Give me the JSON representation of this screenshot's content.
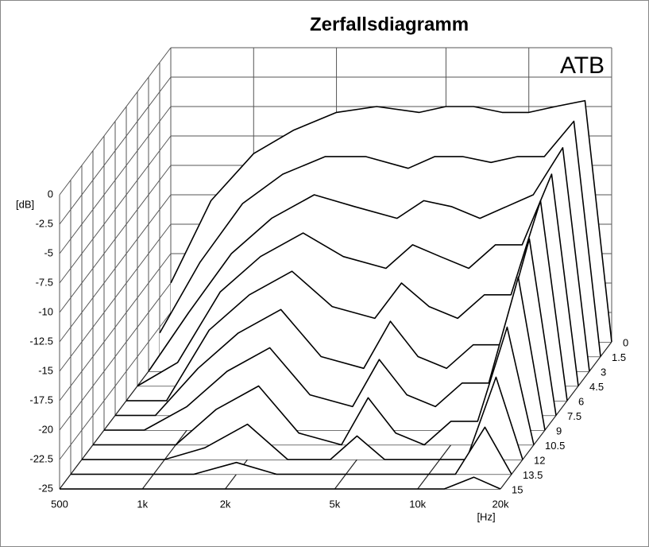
{
  "chart_data": {
    "type": "waterfall",
    "title": "Zerfallsdiagramm",
    "annotation": "ATB",
    "y_label": "[dB]",
    "x_label": "[Hz]",
    "xscale": "log",
    "grid": true,
    "color": "#000000",
    "x": [
      500,
      700,
      1000,
      1400,
      2000,
      2800,
      4000,
      5000,
      6300,
      8000,
      10000,
      12500,
      16000,
      20000
    ],
    "xlim": [
      500,
      20000
    ],
    "xticks": [
      500,
      {
        "value": 1000,
        "label": "1k"
      },
      {
        "value": 2000,
        "label": "2k"
      },
      {
        "value": 5000,
        "label": "5k"
      },
      {
        "value": 10000,
        "label": "10k"
      },
      {
        "value": 20000,
        "label": "20k"
      }
    ],
    "ylim": [
      -25,
      0
    ],
    "yticks": [
      0,
      -2.5,
      -5,
      -7.5,
      -10,
      -12.5,
      -15,
      -17.5,
      -20,
      -22.5,
      -25
    ],
    "zlim": [
      0,
      15
    ],
    "zticks": [
      0,
      1.5,
      3,
      4.5,
      6,
      7.5,
      9,
      10.5,
      12,
      13.5,
      15
    ],
    "series": [
      {
        "z": 0,
        "values": [
          -20,
          -13,
          -9,
          -7,
          -5.5,
          -5,
          -5.5,
          -5,
          -5,
          -5.5,
          -5.5,
          -5,
          -4.5,
          -25
        ]
      },
      {
        "z": 1.5,
        "values": [
          -23,
          -17,
          -12,
          -9.5,
          -8,
          -8,
          -9,
          -8,
          -8,
          -8.5,
          -8,
          -8,
          -5,
          -25
        ]
      },
      {
        "z": 3,
        "values": [
          -25,
          -20,
          -15,
          -12,
          -10,
          -11,
          -12,
          -10.5,
          -11,
          -12,
          -11,
          -10,
          -6,
          -25
        ]
      },
      {
        "z": 4.5,
        "values": [
          -25,
          -23,
          -17,
          -14,
          -12,
          -14,
          -15,
          -13,
          -14,
          -15,
          -13,
          -13,
          -7,
          -25
        ]
      },
      {
        "z": 6,
        "values": [
          -25,
          -25,
          -19,
          -16,
          -14,
          -17,
          -18,
          -15,
          -17,
          -18,
          -16,
          -16,
          -8,
          -25
        ]
      },
      {
        "z": 7.5,
        "values": [
          -25,
          -25,
          -21,
          -18,
          -16,
          -20,
          -21,
          -17,
          -20,
          -21,
          -19,
          -19,
          -10,
          -25
        ]
      },
      {
        "z": 9,
        "values": [
          -25,
          -25,
          -23,
          -20,
          -18,
          -22,
          -23,
          -19,
          -22,
          -23,
          -21,
          -21,
          -12,
          -25
        ]
      },
      {
        "z": 10.5,
        "values": [
          -25,
          -25,
          -25,
          -22,
          -20,
          -24,
          -25,
          -21,
          -24,
          -25,
          -23,
          -23,
          -15,
          -25
        ]
      },
      {
        "z": 12,
        "values": [
          -25,
          -25,
          -25,
          -24,
          -22,
          -25,
          -25,
          -23,
          -25,
          -25,
          -25,
          -25,
          -18,
          -25
        ]
      },
      {
        "z": 13.5,
        "values": [
          -25,
          -25,
          -25,
          -25,
          -24,
          -25,
          -25,
          -25,
          -25,
          -25,
          -25,
          -25,
          -21,
          -25
        ]
      },
      {
        "z": 15,
        "values": [
          -25,
          -25,
          -25,
          -25,
          -25,
          -25,
          -25,
          -25,
          -25,
          -25,
          -25,
          -25,
          -24,
          -25
        ]
      }
    ]
  }
}
